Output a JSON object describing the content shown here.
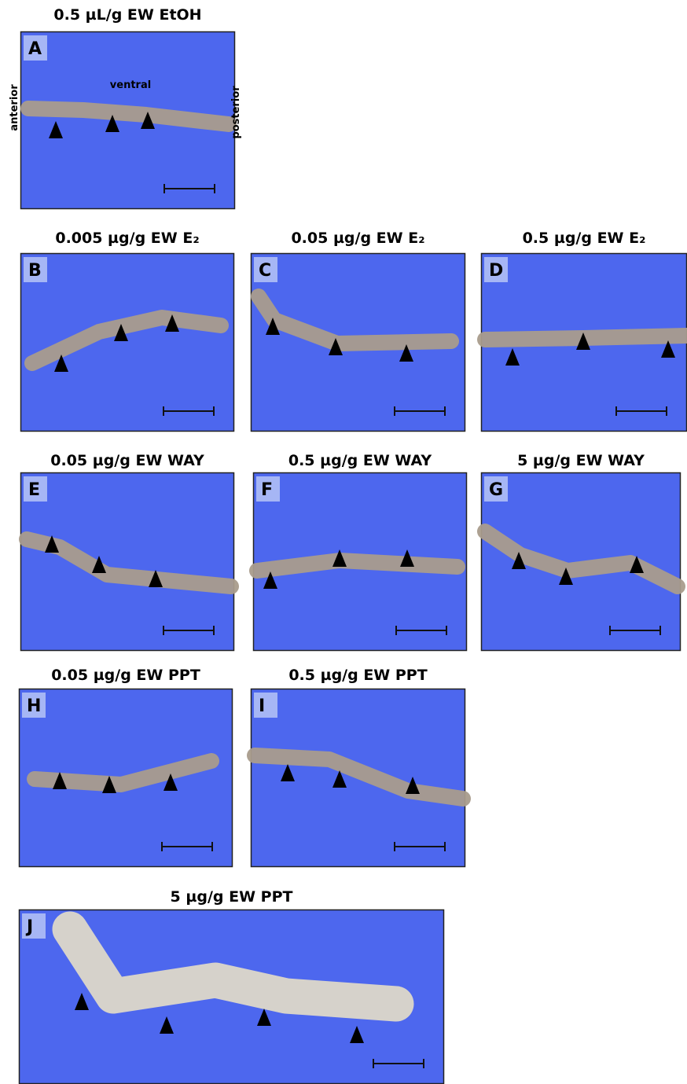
{
  "panels": [
    {
      "letter": "A",
      "title": "0.5 µL/g EW EtOH"
    },
    {
      "letter": "B",
      "title": "0.005 µg/g EW E₂"
    },
    {
      "letter": "C",
      "title": "0.05 µg/g EW E₂"
    },
    {
      "letter": "D",
      "title": "0.5 µg/g EW E₂"
    },
    {
      "letter": "E",
      "title": "0.05 µg/g EW WAY"
    },
    {
      "letter": "F",
      "title": "0.5 µg/g EW WAY"
    },
    {
      "letter": "G",
      "title": "5 µg/g EW WAY"
    },
    {
      "letter": "H",
      "title": "0.05 µg/g EW PPT"
    },
    {
      "letter": "I",
      "title": "0.5 µg/g EW PPT"
    },
    {
      "letter": "J",
      "title": "5 µg/g EW PPT"
    }
  ],
  "orientation": {
    "ventral": "ventral",
    "anterior": "anterior",
    "posterior": "posterior"
  }
}
